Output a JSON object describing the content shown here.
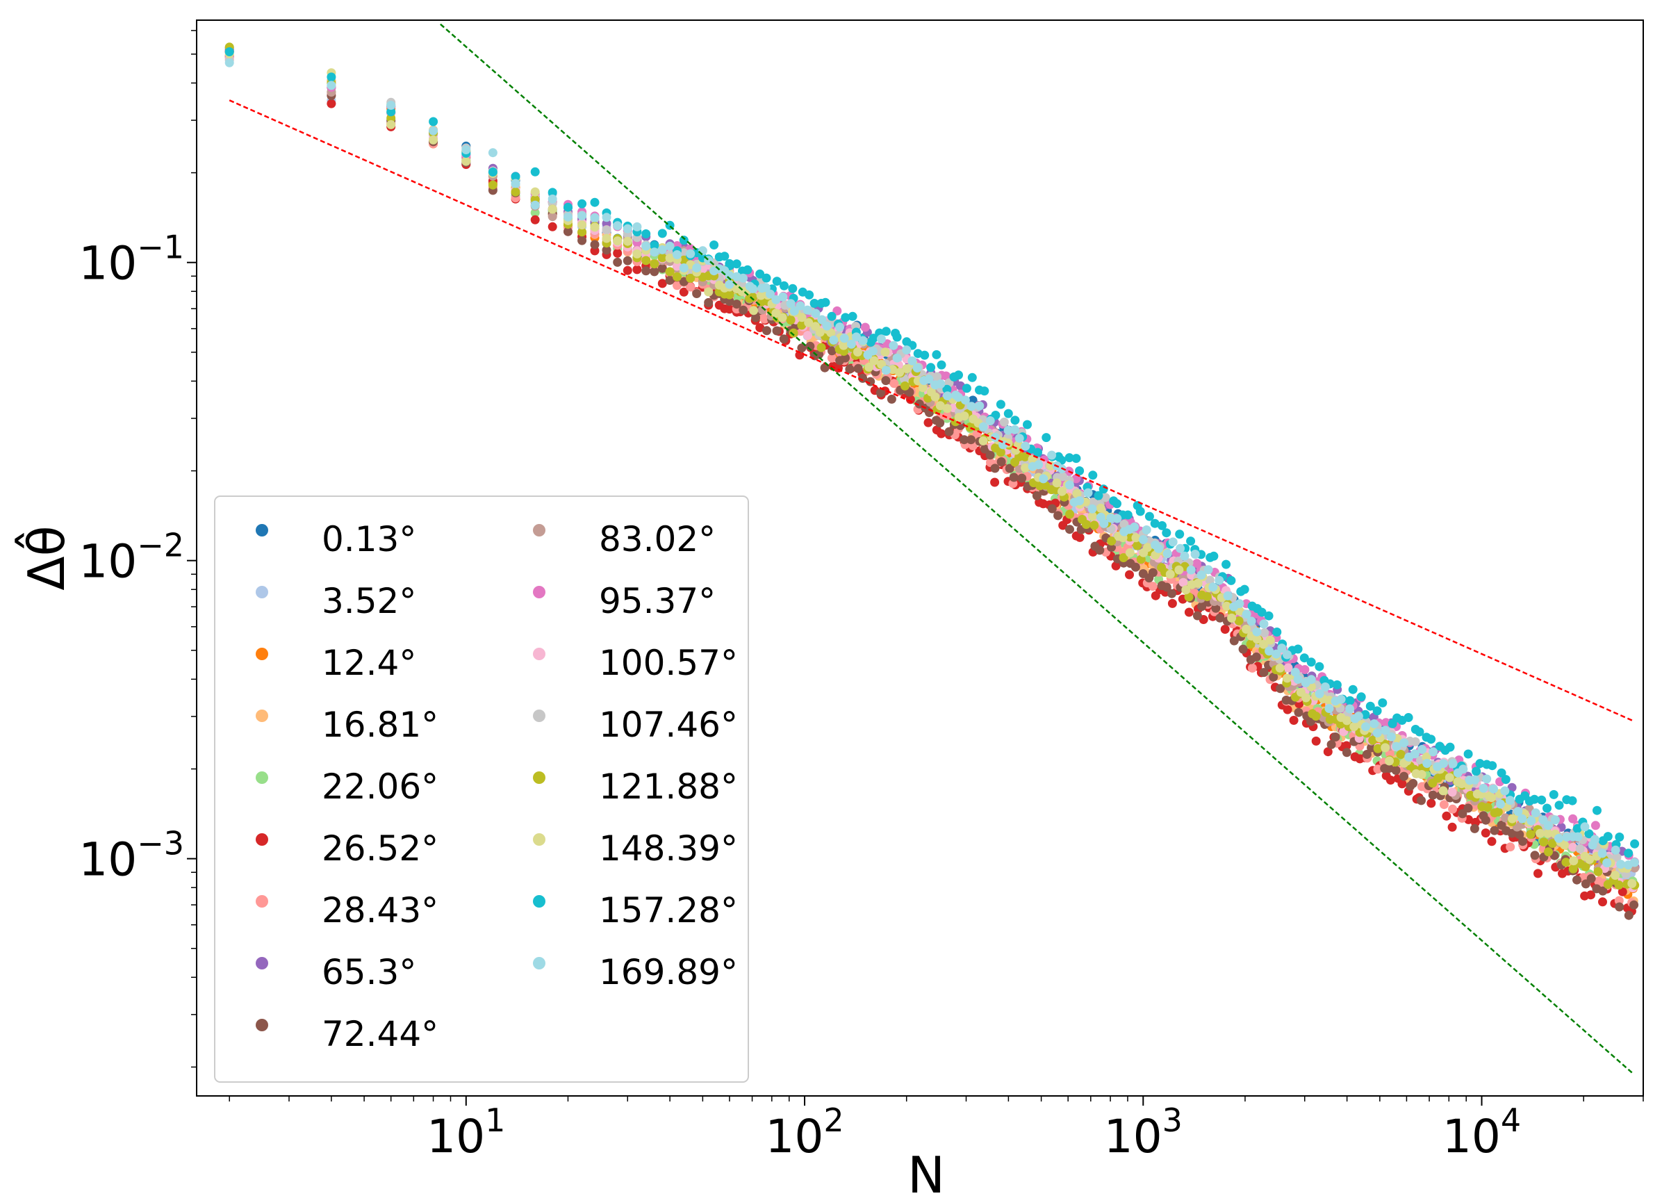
{
  "chart_data": {
    "type": "scatter",
    "xscale": "log",
    "yscale": "log",
    "xlim": [
      1.6,
      30000
    ],
    "ylim": [
      0.00016,
      0.65
    ],
    "xlabel": "N",
    "ylabel": "Δθ̂",
    "xticks": [
      {
        "value": 10,
        "base": "10",
        "exp": "1"
      },
      {
        "value": 100,
        "base": "10",
        "exp": "2"
      },
      {
        "value": 1000,
        "base": "10",
        "exp": "3"
      },
      {
        "value": 10000,
        "base": "10",
        "exp": "4"
      }
    ],
    "yticks": [
      {
        "value": 0.1,
        "base": "10",
        "exp": "−1"
      },
      {
        "value": 0.01,
        "base": "10",
        "exp": "−2"
      },
      {
        "value": 0.001,
        "base": "10",
        "exp": "−3"
      }
    ],
    "reference_lines": [
      {
        "name": "N^-1/2 reference",
        "color": "#ff0000",
        "points": [
          [
            2,
            0.35
          ],
          [
            28000,
            0.0029
          ]
        ]
      },
      {
        "name": "N^-1 reference",
        "color": "#008000",
        "points": [
          [
            8.4,
            0.63
          ],
          [
            28000,
            0.00019
          ]
        ]
      }
    ],
    "series": [
      {
        "name": "0.13°",
        "color": "#1f77b4"
      },
      {
        "name": "3.52°",
        "color": "#aec7e8"
      },
      {
        "name": "12.4°",
        "color": "#ff7f0e"
      },
      {
        "name": "16.81°",
        "color": "#ffbb78"
      },
      {
        "name": "22.06°",
        "color": "#98df8a"
      },
      {
        "name": "26.52°",
        "color": "#d62728"
      },
      {
        "name": "28.43°",
        "color": "#ff9896"
      },
      {
        "name": "65.3°",
        "color": "#9467bd"
      },
      {
        "name": "72.44°",
        "color": "#8c564b"
      },
      {
        "name": "83.02°",
        "color": "#c49c94"
      },
      {
        "name": "95.37°",
        "color": "#e377c2"
      },
      {
        "name": "100.57°",
        "color": "#f7b6d2"
      },
      {
        "name": "107.46°",
        "color": "#c7c7c7"
      },
      {
        "name": "121.88°",
        "color": "#bcbd22"
      },
      {
        "name": "148.39°",
        "color": "#dbdb8d"
      },
      {
        "name": "157.28°",
        "color": "#17becf"
      },
      {
        "name": "169.89°",
        "color": "#9edae5"
      }
    ],
    "trend": {
      "x": [
        2,
        4,
        8,
        15,
        30,
        60,
        100,
        200,
        400,
        800,
        1700,
        3000,
        6000,
        12000,
        28000
      ],
      "y": [
        0.5,
        0.39,
        0.27,
        0.17,
        0.115,
        0.085,
        0.063,
        0.043,
        0.024,
        0.013,
        0.0075,
        0.0036,
        0.0022,
        0.00145,
        0.00085
      ]
    },
    "series_offsets": [
      0.02,
      0.0,
      -0.02,
      -0.04,
      -0.03,
      -0.1,
      -0.06,
      0.04,
      -0.08,
      0.0,
      0.05,
      0.01,
      0.03,
      -0.02,
      0.0,
      0.1,
      0.04
    ],
    "legend": {
      "location": "lower-left",
      "columns": 2
    }
  }
}
